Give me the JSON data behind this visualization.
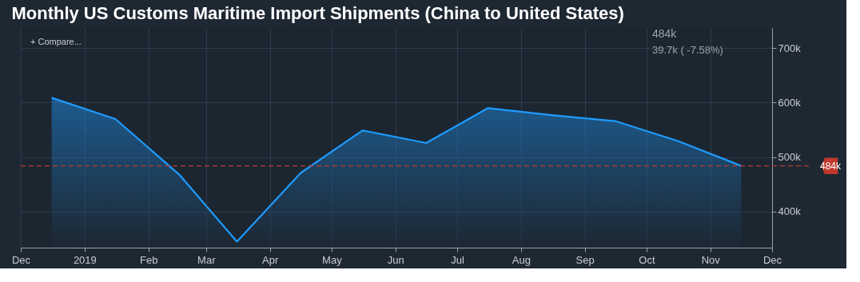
{
  "chart_data": {
    "type": "area",
    "title": "Monthly US Customs Maritime Import Shipments (China to United States)",
    "annotations": [
      "484k",
      "39.7k ( -7.58%)",
      "+ Compare..."
    ],
    "x": [
      "2018-12-16",
      "2019-01-16",
      "2019-02-16",
      "2019-03-16",
      "2019-04-16",
      "2019-05-16",
      "2019-06-16",
      "2019-07-16",
      "2019-08-16",
      "2019-09-16",
      "2019-10-16",
      "2019-11-16"
    ],
    "series": [
      {
        "color": "#1e9bff",
        "values": [
          609000,
          570000,
          468000,
          345000,
          471000,
          549000,
          526000,
          590000,
          577000,
          566000,
          530000,
          484000
        ]
      }
    ],
    "xlim": [
      "2018-12-01",
      "2019-12-01"
    ],
    "xticks": [
      {
        "value": "2018-12-01",
        "label": "Dec"
      },
      {
        "value": "2019-01-01",
        "label": "2019"
      },
      {
        "value": "2019-02-01",
        "label": "Feb"
      },
      {
        "value": "2019-03-01",
        "label": "Mar"
      },
      {
        "value": "2019-04-01",
        "label": "Apr"
      },
      {
        "value": "2019-05-01",
        "label": "May"
      },
      {
        "value": "2019-06-01",
        "label": "Jun"
      },
      {
        "value": "2019-07-01",
        "label": "Jul"
      },
      {
        "value": "2019-08-01",
        "label": "Aug"
      },
      {
        "value": "2019-09-01",
        "label": "Sep"
      },
      {
        "value": "2019-10-01",
        "label": "Oct"
      },
      {
        "value": "2019-11-01",
        "label": "Nov"
      },
      {
        "value": "2019-12-01",
        "label": "Dec"
      }
    ],
    "ylim": [
      334000,
      737000
    ],
    "yticks": [
      {
        "value": 400000,
        "label": "400k"
      },
      {
        "value": 500000,
        "label": "500k"
      },
      {
        "value": 600000,
        "label": "600k"
      },
      {
        "value": 700000,
        "label": "700k"
      }
    ],
    "ref_lines": [
      {
        "axis": "y",
        "value": 484000,
        "label": "484k",
        "color": "#c0392b",
        "line_style": "dashed"
      }
    ],
    "grid": true,
    "marker": "none",
    "line_style": "solid"
  }
}
